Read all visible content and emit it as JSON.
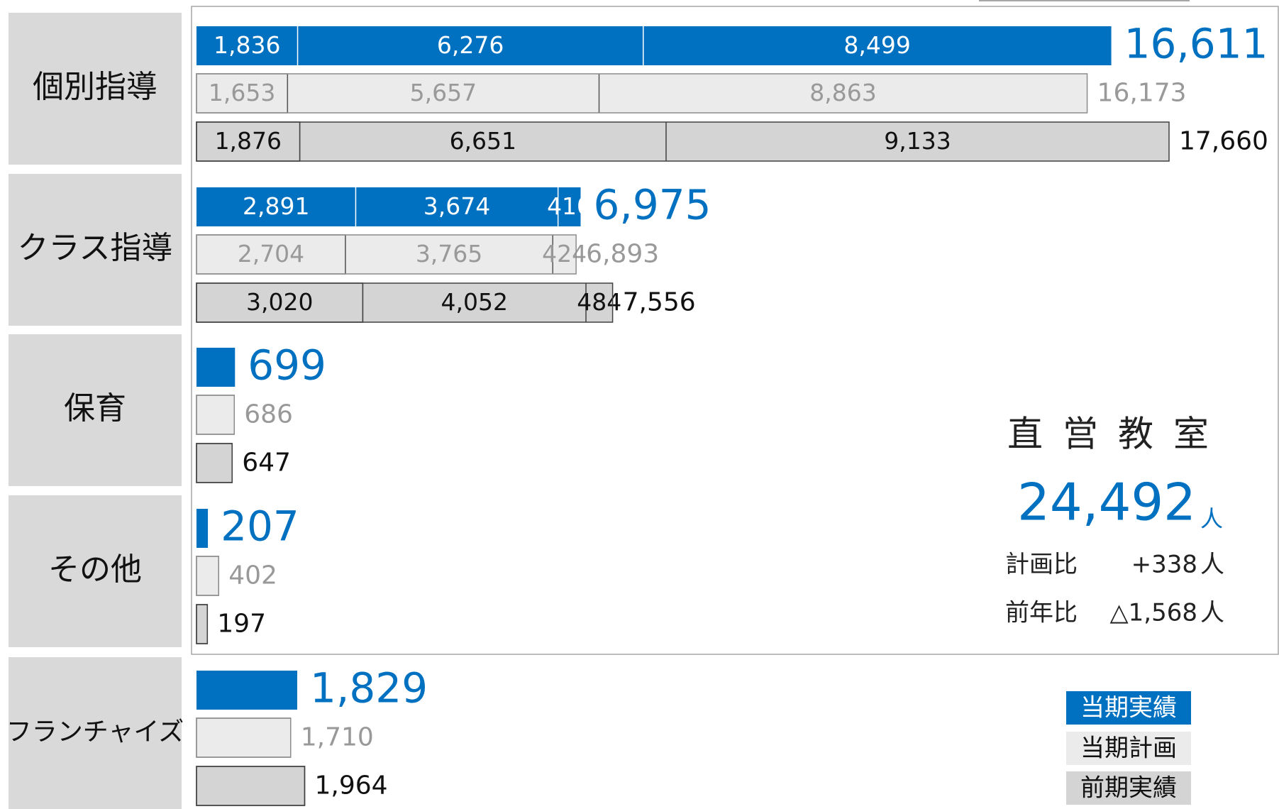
{
  "chart_data": {
    "type": "bar",
    "categories": [
      "個別指導",
      "クラス指導",
      "保育",
      "その他",
      "フランチャイズ"
    ],
    "xlim": [
      0,
      17660
    ],
    "series": [
      {
        "name": "当期実績",
        "color": "#0070c0",
        "values": [
          [
            1836,
            6276,
            8499
          ],
          [
            2891,
            3674,
            410
          ],
          [
            699
          ],
          [
            207
          ],
          [
            1829
          ]
        ],
        "value_labels": [
          [
            "1,836",
            "6,276",
            "8,499"
          ],
          [
            "2,891",
            "3,674",
            "410"
          ],
          null,
          null,
          null
        ],
        "totals": [
          {
            "value": 16611,
            "label": "16,611"
          },
          {
            "value": 6975,
            "label": "6,975"
          },
          {
            "value": 699,
            "label": "699"
          },
          {
            "value": 207,
            "label": "207"
          },
          {
            "value": 1829,
            "label": "1,829"
          }
        ]
      },
      {
        "name": "当期計画",
        "color": "#ebebeb",
        "values": [
          [
            1653,
            5657,
            8863
          ],
          [
            2704,
            3765,
            424
          ],
          [
            686
          ],
          [
            402
          ],
          [
            1710
          ]
        ],
        "value_labels": [
          [
            "1,653",
            "5,657",
            "8,863"
          ],
          [
            "2,704",
            "3,765",
            "424"
          ],
          null,
          null,
          null
        ],
        "totals": [
          {
            "value": 16173,
            "label": "16,173"
          },
          {
            "value": 6893,
            "label": "6,893"
          },
          {
            "value": 686,
            "label": "686"
          },
          {
            "value": 402,
            "label": "402"
          },
          {
            "value": 1710,
            "label": "1,710"
          }
        ]
      },
      {
        "name": "前期実績",
        "color": "#d4d4d4",
        "values": [
          [
            1876,
            6651,
            9133
          ],
          [
            3020,
            4052,
            484
          ],
          [
            647
          ],
          [
            197
          ],
          [
            1964
          ]
        ],
        "value_labels": [
          [
            "1,876",
            "6,651",
            "9,133"
          ],
          [
            "3,020",
            "4,052",
            "484"
          ],
          null,
          null,
          null
        ],
        "totals": [
          {
            "value": 17660,
            "label": "17,660"
          },
          {
            "value": 7556,
            "label": "7,556"
          },
          {
            "value": 647,
            "label": "647"
          },
          {
            "value": 197,
            "label": "197"
          },
          {
            "value": 1964,
            "label": "1,964"
          }
        ]
      }
    ],
    "summary": {
      "title": "直営教室",
      "total": {
        "value": 24492,
        "label": "24,492"
      },
      "unit": "人",
      "rows": [
        {
          "label": "計画比",
          "value": "+338"
        },
        {
          "label": "前年比",
          "value": "△1,568"
        }
      ]
    }
  }
}
